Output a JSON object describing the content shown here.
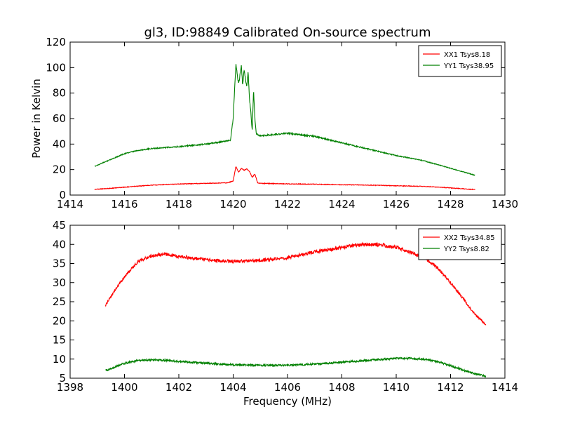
{
  "figure": {
    "title": "gl3, ID:98849 Calibrated On-source spectrum",
    "xlabel": "Frequency (MHz)",
    "ylabel_top": "Power in Kelvin"
  },
  "chart_data": [
    {
      "type": "line",
      "title": "gl3, ID:98849 Calibrated On-source spectrum",
      "xlabel": "",
      "ylabel": "Power in Kelvin",
      "xlim": [
        1414,
        1430
      ],
      "ylim": [
        0,
        120
      ],
      "xticks": [
        1414,
        1416,
        1418,
        1420,
        1422,
        1424,
        1426,
        1428,
        1430
      ],
      "yticks": [
        0,
        20,
        40,
        60,
        80,
        100,
        120
      ],
      "grid": false,
      "legend_position": "top-right",
      "series": [
        {
          "name": "XX1 Tsys8.18",
          "color": "#ff0000",
          "x": [
            1414.9,
            1415.5,
            1416.0,
            1416.5,
            1417.0,
            1418.0,
            1419.0,
            1419.8,
            1420.0,
            1420.1,
            1420.2,
            1420.3,
            1420.4,
            1420.5,
            1420.6,
            1420.7,
            1420.8,
            1420.9,
            1421.0,
            1422.0,
            1423.0,
            1424.0,
            1425.0,
            1426.0,
            1427.0,
            1427.5,
            1428.0,
            1428.5,
            1428.9
          ],
          "y": [
            4.5,
            5.3,
            6.2,
            7.0,
            7.8,
            8.7,
            9.2,
            9.6,
            11.0,
            22.5,
            18.0,
            21.0,
            19.5,
            20.5,
            18.5,
            14.0,
            16.5,
            9.6,
            9.2,
            8.8,
            8.5,
            8.1,
            7.8,
            7.3,
            6.8,
            6.3,
            5.6,
            4.9,
            4.3
          ]
        },
        {
          "name": "YY1 Tsys38.95",
          "color": "#008000",
          "x": [
            1414.9,
            1415.5,
            1416.0,
            1416.5,
            1417.0,
            1418.0,
            1419.0,
            1419.5,
            1419.9,
            1420.0,
            1420.1,
            1420.2,
            1420.3,
            1420.35,
            1420.4,
            1420.5,
            1420.55,
            1420.6,
            1420.65,
            1420.7,
            1420.75,
            1420.8,
            1420.85,
            1421.0,
            1422.0,
            1423.0,
            1424.0,
            1425.0,
            1426.0,
            1427.0,
            1427.5,
            1428.0,
            1428.5,
            1428.9
          ],
          "y": [
            22.5,
            28.0,
            32.5,
            35.0,
            36.5,
            38.0,
            40.0,
            41.5,
            43.0,
            60.0,
            103.0,
            87.0,
            101.0,
            86.0,
            98.0,
            85.0,
            97.0,
            75.0,
            65.0,
            50.0,
            82.0,
            60.0,
            48.0,
            46.5,
            48.5,
            46.0,
            41.0,
            36.0,
            31.0,
            27.0,
            24.0,
            21.0,
            18.0,
            15.5
          ]
        }
      ]
    },
    {
      "type": "line",
      "title": "",
      "xlabel": "Frequency (MHz)",
      "ylabel": "",
      "xlim": [
        1398,
        1414
      ],
      "ylim": [
        5,
        45
      ],
      "xticks": [
        1398,
        1400,
        1402,
        1404,
        1406,
        1408,
        1410,
        1412,
        1414
      ],
      "yticks": [
        5,
        10,
        15,
        20,
        25,
        30,
        35,
        40,
        45
      ],
      "grid": false,
      "legend_position": "top-right",
      "series": [
        {
          "name": "XX2 Tsys34.85",
          "color": "#ff0000",
          "x": [
            1399.3,
            1399.6,
            1400.0,
            1400.5,
            1401.0,
            1401.5,
            1402.0,
            1403.0,
            1404.0,
            1405.0,
            1406.0,
            1407.0,
            1408.0,
            1408.5,
            1409.0,
            1409.5,
            1410.0,
            1410.5,
            1411.0,
            1411.5,
            1412.0,
            1412.5,
            1412.8,
            1413.0,
            1413.3
          ],
          "y": [
            24.0,
            27.5,
            31.5,
            35.5,
            37.0,
            37.5,
            36.8,
            36.0,
            35.5,
            35.8,
            36.5,
            38.0,
            39.2,
            39.8,
            40.0,
            39.8,
            39.2,
            38.0,
            36.5,
            34.0,
            30.0,
            25.5,
            22.5,
            21.0,
            19.0
          ]
        },
        {
          "name": "YY2 Tsys8.82",
          "color": "#008000",
          "x": [
            1399.3,
            1399.6,
            1400.0,
            1400.5,
            1401.0,
            1401.5,
            1402.0,
            1403.0,
            1404.0,
            1405.0,
            1406.0,
            1407.0,
            1408.0,
            1409.0,
            1410.0,
            1410.5,
            1411.0,
            1411.5,
            1412.0,
            1412.5,
            1413.0,
            1413.3
          ],
          "y": [
            7.0,
            7.8,
            8.9,
            9.6,
            9.8,
            9.7,
            9.4,
            8.9,
            8.5,
            8.4,
            8.4,
            8.7,
            9.2,
            9.7,
            10.2,
            10.2,
            10.0,
            9.4,
            8.3,
            7.0,
            6.0,
            5.5
          ]
        }
      ]
    }
  ]
}
